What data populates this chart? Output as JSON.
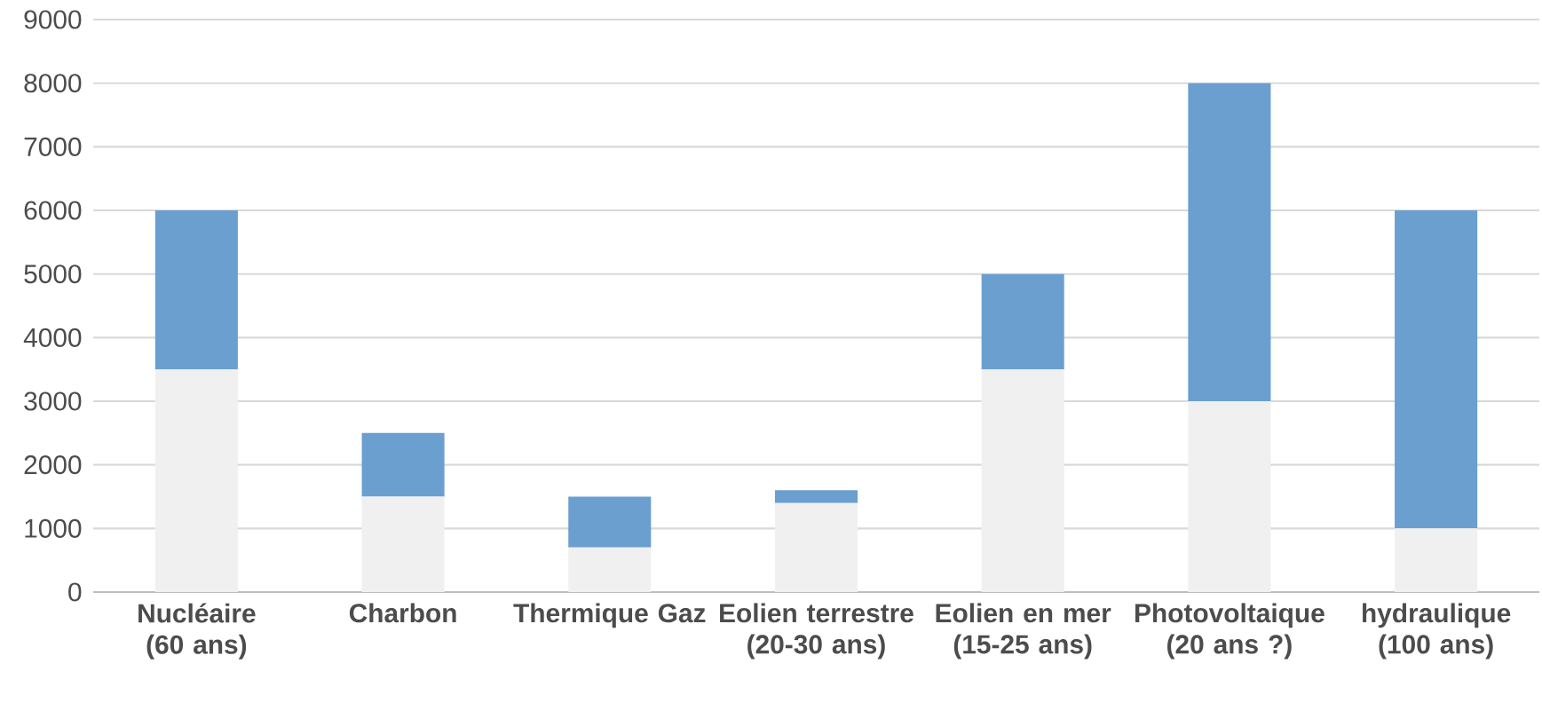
{
  "chart_data": {
    "type": "bar",
    "stacked": true,
    "categories": [
      "Nucléaire (60 ans)",
      "Charbon",
      "Thermique Gaz",
      "Eolien terrestre (20-30 ans)",
      "Eolien en mer (15-25 ans)",
      "Photovoltaique (20 ans ?)",
      "hydraulique (100 ans)"
    ],
    "series": [
      {
        "color": "#f0f0f0",
        "values": [
          3500,
          1500,
          700,
          1400,
          3500,
          3000,
          1000
        ]
      },
      {
        "color": "#6b9fcf",
        "values": [
          2500,
          1000,
          800,
          200,
          1500,
          5000,
          5000
        ]
      }
    ],
    "ylim": [
      0,
      9000
    ],
    "yticks": [
      0,
      1000,
      2000,
      3000,
      4000,
      5000,
      6000,
      7000,
      8000,
      9000
    ],
    "grid": "y"
  }
}
